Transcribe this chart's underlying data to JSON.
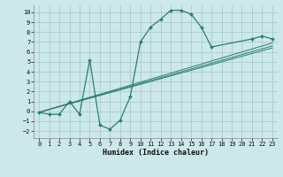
{
  "xlabel": "Humidex (Indice chaleur)",
  "background_color": "#cce8ea",
  "grid_color": "#aaccce",
  "line_color": "#2e7d6e",
  "xlim": [
    -0.5,
    23.5
  ],
  "ylim": [
    -2.7,
    10.7
  ],
  "xticks": [
    0,
    1,
    2,
    3,
    4,
    5,
    6,
    7,
    8,
    9,
    10,
    11,
    12,
    13,
    14,
    15,
    16,
    17,
    18,
    19,
    20,
    21,
    22,
    23
  ],
  "yticks": [
    -2,
    -1,
    0,
    1,
    2,
    3,
    4,
    5,
    6,
    7,
    8,
    9,
    10
  ],
  "main_x": [
    0,
    1,
    2,
    3,
    4,
    5,
    6,
    7,
    8,
    9,
    10,
    11,
    12,
    13,
    14,
    15,
    16,
    17,
    21,
    22,
    23
  ],
  "main_y": [
    -0.1,
    -0.3,
    -0.3,
    1.0,
    -0.3,
    5.2,
    -1.4,
    -1.8,
    -0.9,
    1.5,
    7.0,
    8.5,
    9.3,
    10.2,
    10.2,
    9.8,
    8.5,
    6.5,
    7.3,
    7.6,
    7.3
  ],
  "line1_x": [
    0,
    23
  ],
  "line1_y": [
    -0.1,
    6.4
  ],
  "line2_x": [
    0,
    23
  ],
  "line2_y": [
    -0.1,
    6.6
  ],
  "line3_x": [
    0,
    23
  ],
  "line3_y": [
    -0.1,
    6.9
  ]
}
